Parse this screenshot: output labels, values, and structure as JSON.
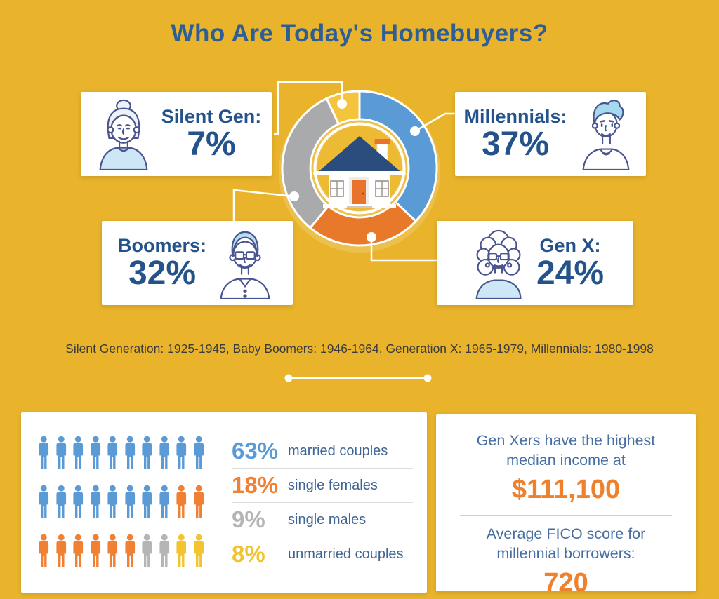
{
  "title": "Who Are Today's Homebuyers?",
  "palette": {
    "background": "#e9b42c",
    "title_blue": "#2d5f96",
    "card_text_blue": "#24538c",
    "stat_label_blue": "#3e6493",
    "fact_text_blue": "#466ea3",
    "fact_value_orange": "#f0812c",
    "legend_text_color": "#3b3b3b",
    "donut": {
      "blue": "#5b9bd5",
      "orange": "#e8782a",
      "gray": "#a9aaac",
      "yellow": "#f4c43d"
    },
    "pictogram": {
      "blue": "#5b9bd5",
      "orange": "#f08033",
      "gray": "#b5b5b7",
      "yellow": "#f2c430"
    }
  },
  "chart_data": [
    {
      "type": "pie",
      "style": "donut",
      "title": "Who Are Today's Homebuyers?",
      "labels": [
        "Millennials",
        "Gen X",
        "Boomers",
        "Silent Gen"
      ],
      "values": [
        37,
        24,
        32,
        7
      ],
      "colors": [
        "#5b9bd5",
        "#e8782a",
        "#a9aaac",
        "#f4c43d"
      ],
      "start_angle": "12 o'clock",
      "direction": "clockwise",
      "center_icon": "house"
    },
    {
      "type": "pictogram-bar",
      "categories": [
        "married couples",
        "single females",
        "single males",
        "unmarried couples"
      ],
      "values": [
        63,
        18,
        9,
        8
      ],
      "unit": "%",
      "icon": "person",
      "icon_rows": [
        [
          "blue",
          "blue",
          "blue",
          "blue",
          "blue",
          "blue",
          "blue",
          "blue",
          "blue",
          "blue"
        ],
        [
          "blue",
          "blue",
          "blue",
          "blue",
          "blue",
          "blue",
          "blue",
          "blue",
          "orange",
          "orange"
        ],
        [
          "orange",
          "orange",
          "orange",
          "orange",
          "orange",
          "orange",
          "gray",
          "gray",
          "yellow",
          "yellow"
        ]
      ]
    }
  ],
  "generation_cards": [
    {
      "id": "silent-gen",
      "label": "Silent Gen:",
      "value": "7%",
      "avatar": "elderly-woman"
    },
    {
      "id": "millennials",
      "label": "Millennials:",
      "value": "37%",
      "avatar": "young-man"
    },
    {
      "id": "boomers",
      "label": "Boomers:",
      "value": "32%",
      "avatar": "elderly-man"
    },
    {
      "id": "gen-x",
      "label": "Gen X:",
      "value": "24%",
      "avatar": "adult-woman"
    }
  ],
  "legend_text": "Silent Generation: 1925-1945, Baby Boomers: 1946-1964, Generation X: 1965-1979, Millennials: 1980-1998",
  "household_stats": [
    {
      "value": "63%",
      "label": "married couples",
      "color_key": "blue"
    },
    {
      "value": "18%",
      "label": "single females",
      "color_key": "orange"
    },
    {
      "value": "9%",
      "label": "single males",
      "color_key": "gray"
    },
    {
      "value": "8%",
      "label": "unmarried couples",
      "color_key": "yellow"
    }
  ],
  "income_facts": {
    "fact1_text": "Gen Xers have the highest median income at",
    "fact1_value": "$111,100",
    "fact2_text": "Average FICO score for millennial borrowers:",
    "fact2_value": "720"
  }
}
